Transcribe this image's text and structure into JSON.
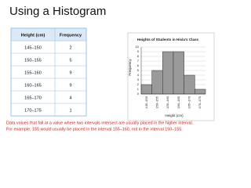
{
  "title": "Using a Histogram",
  "table": {
    "header": [
      "Height (cm)",
      "Frequency"
    ],
    "rows": [
      [
        "145–150",
        "2"
      ],
      [
        "150–155",
        "5"
      ],
      [
        "155–160",
        "9"
      ],
      [
        "160–165",
        "9"
      ],
      [
        "165–170",
        "4"
      ],
      [
        "170–175",
        "1"
      ]
    ]
  },
  "chart_data": {
    "type": "bar",
    "title": "Heights of Students in Hisla's Class",
    "x_label": "Height (cm)",
    "y_label": "Frequency",
    "categories": [
      "145–150",
      "150–155",
      "155–160",
      "160–165",
      "165–170",
      "170–175"
    ],
    "values": [
      2,
      5,
      9,
      9,
      4,
      1
    ],
    "color": "#9a9a9a",
    "ylim": [
      0,
      10
    ],
    "yticks": [
      0,
      1,
      2,
      3,
      4,
      5,
      6,
      7,
      8,
      9,
      10
    ],
    "grid": true
  },
  "note": [
    "Data values that fall at a value where two intervals intersect are usually placed in the higher interval.",
    "For example, 155 would usually be placed in the interval 155–160, not in the interval 150–155."
  ]
}
